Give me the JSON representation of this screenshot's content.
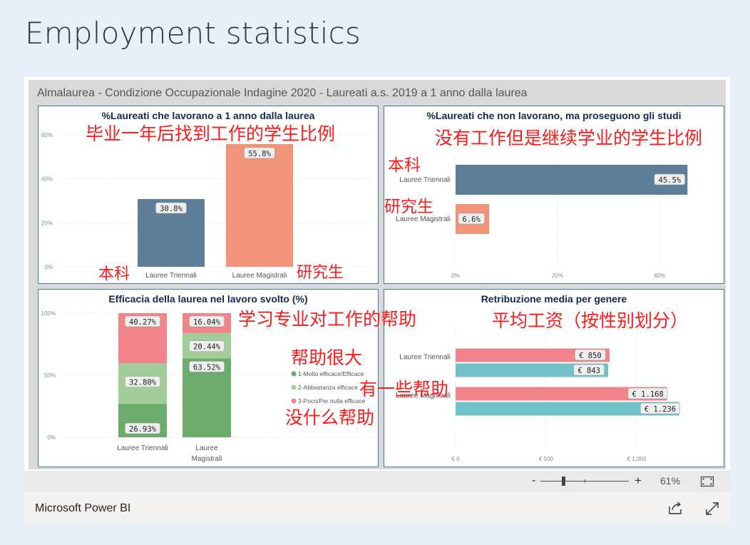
{
  "page": {
    "title": "Employment statistics"
  },
  "report": {
    "title": "Almalaurea - Condizione Occupazionale Indagine 2020 - Laureati a.s. 2019 a 1 anno dalla laurea"
  },
  "footer": {
    "brand": "Microsoft Power BI",
    "zoom_minus": "-",
    "zoom_plus": "+",
    "zoom_label": "61%",
    "zoom_value": 61
  },
  "icons": {
    "fit": "fit-to-page-icon",
    "share": "share-icon",
    "fullscreen": "fullscreen-icon"
  },
  "annotations": {
    "chart1_title": "毕业一年后找到工作的学生比例",
    "chart1_left": "本科",
    "chart1_right": "研究生",
    "chart2_title": "没有工作但是继续学业的学生比例",
    "chart2_top": "本科",
    "chart2_bottom": "研究生",
    "chart3_title": "学习专业对工作的帮助",
    "chart3_l1": "帮助很大",
    "chart3_l2": "有一些帮助",
    "chart3_l3": "没什么帮助",
    "chart4_title": "平均工资（按性别划分）"
  },
  "chart_data": [
    {
      "type": "bar",
      "title": "%Laureati che lavorano a 1 anno dalla laurea",
      "categories": [
        "Lauree Triennali",
        "Lauree Magistrali"
      ],
      "values": [
        30.8,
        55.8
      ],
      "value_labels": [
        "30.8%",
        "55.8%"
      ],
      "colors": [
        "#5f7e99",
        "#f0957a"
      ],
      "ylim": [
        0,
        60
      ],
      "yticks": [
        0,
        20,
        40,
        60
      ],
      "ytick_labels": [
        "0%",
        "20%",
        "40%",
        "60%"
      ],
      "grid": true
    },
    {
      "type": "bar",
      "orientation": "horizontal",
      "title": "%Laureati che non lavorano, ma proseguono gli studi",
      "categories": [
        "Lauree Triennali",
        "Lauree Magistrali"
      ],
      "values": [
        45.5,
        6.6
      ],
      "value_labels": [
        "45.5%",
        "6.6%"
      ],
      "colors": [
        "#5f7e99",
        "#f0957a"
      ],
      "xlim": [
        0,
        50
      ],
      "xticks": [
        0,
        20,
        40
      ],
      "xtick_labels": [
        "0%",
        "20%",
        "40%"
      ],
      "grid": true
    },
    {
      "type": "bar",
      "stacked": true,
      "title": "Efficacia della laurea nel lavoro svolto (%)",
      "categories": [
        "Lauree Triennali",
        "Lauree Magistrali"
      ],
      "series": [
        {
          "name": "1-Molto efficace/Efficace",
          "color": "#6bab6b",
          "values": [
            26.93,
            63.52
          ],
          "value_labels": [
            "26.93%",
            "63.52%"
          ]
        },
        {
          "name": "2-Abbastanza efficace",
          "color": "#a2cc9a",
          "values": [
            32.8,
            20.44
          ],
          "value_labels": [
            "32.80%",
            "20.44%"
          ]
        },
        {
          "name": "3-Poco/Per nulla efficace",
          "color": "#f0848a",
          "values": [
            40.27,
            16.04
          ],
          "value_labels": [
            "40.27%",
            "16.04%"
          ]
        }
      ],
      "ylim": [
        0,
        100
      ],
      "yticks": [
        0,
        50,
        100
      ],
      "ytick_labels": [
        "0%",
        "50%",
        "100%"
      ],
      "legend": "right",
      "grid": true
    },
    {
      "type": "bar",
      "orientation": "horizontal",
      "title": "Retribuzione media per genere",
      "categories": [
        "Lauree Triennali",
        "Lauree Magistrali"
      ],
      "series": [
        {
          "color": "#f0848a",
          "values": [
            850,
            1168
          ],
          "value_labels": [
            "€ 850",
            "€ 1.168"
          ]
        },
        {
          "color": "#72c0c8",
          "values": [
            843,
            1236
          ],
          "value_labels": [
            "€ 843",
            "€ 1.236"
          ]
        }
      ],
      "xlim": [
        0,
        1500
      ],
      "xticks": [
        0,
        500,
        1000
      ],
      "xtick_labels": [
        "€ 0",
        "€ 500",
        "€ 1,000"
      ],
      "grid": true
    }
  ]
}
